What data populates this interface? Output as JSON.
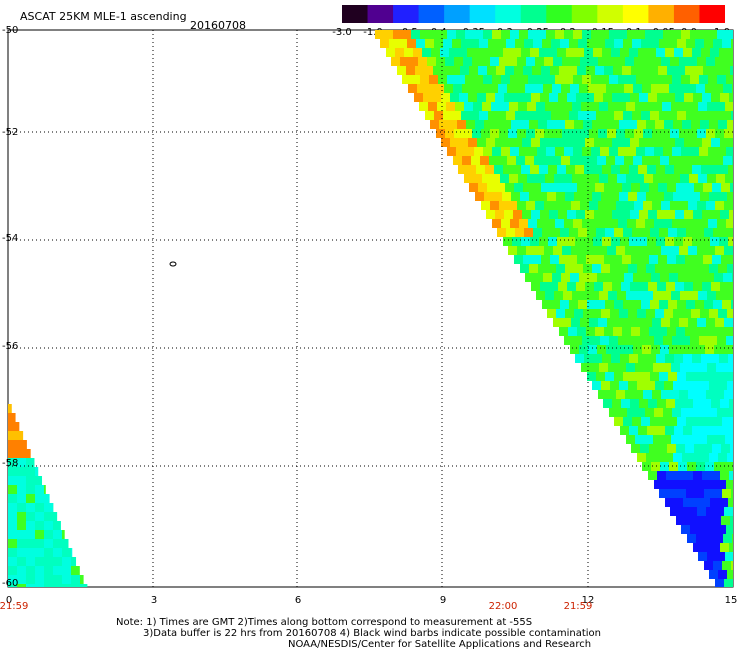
{
  "header": {
    "title": "ASCAT 25KM MLE-1 ascending",
    "date": "20160708"
  },
  "colorbar": {
    "labels": [
      "-3.0",
      "-1.0",
      "-0.5",
      "-0.4",
      "-0.35",
      "-0.3",
      "-0.25",
      "-0.2",
      "-0.15",
      "-0.1",
      "-0.05",
      "0.0",
      "1.0"
    ],
    "colors": [
      "#200020",
      "#500090",
      "#2020ff",
      "#0060ff",
      "#00a0ff",
      "#00e0ff",
      "#00ffe0",
      "#00ff90",
      "#30ff20",
      "#80ff00",
      "#d0ff00",
      "#ffff00",
      "#ffb000",
      "#ff6000",
      "#ff0000"
    ]
  },
  "map": {
    "lat_labels": [
      "-50",
      "-52",
      "-54",
      "-56",
      "-58",
      "-60"
    ],
    "lon_labels": [
      "0",
      "3",
      "6",
      "9",
      "12",
      "15"
    ],
    "time_labels": [
      "21:59",
      "22:00",
      "21:59"
    ],
    "contour_label": "0"
  },
  "notes": {
    "line1": "Note: 1) Times are GMT 2)Times along bottom correspond to measurement at -55S",
    "line2": "3)Data buffer is 22 hrs from 20160708 4) Black wind barbs indicate possible contamination",
    "line3": "NOAA/NESDIS/Center for Satellite Applications and Research"
  }
}
